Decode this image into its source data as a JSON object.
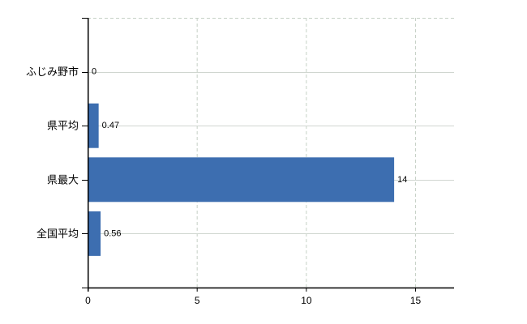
{
  "chart_data": {
    "type": "bar",
    "orientation": "horizontal",
    "title": "",
    "xlabel": "",
    "ylabel": "",
    "categories": [
      "ふじみ野市",
      "県平均",
      "県最大",
      "全国平均"
    ],
    "values": [
      0,
      0.47,
      14,
      0.56
    ],
    "value_labels": [
      "0",
      "0.47",
      "14",
      "0.56"
    ],
    "x_ticks": [
      0,
      5,
      10,
      15
    ],
    "x_tick_labels": [
      "0",
      "5",
      "10",
      "15"
    ],
    "xlim": [
      0,
      16.78
    ],
    "legend": "none",
    "grid": {
      "vertical_lines": "dashed",
      "horizontal_category_lines": "solid",
      "top_border": "dashed"
    },
    "colors": {
      "bar": "#3d6eb0",
      "axis": "#000000",
      "text": "#000000",
      "grid_dashed": "#c5d0c5",
      "grid_solid": "#d0d6d0",
      "background": "#ffffff"
    }
  }
}
